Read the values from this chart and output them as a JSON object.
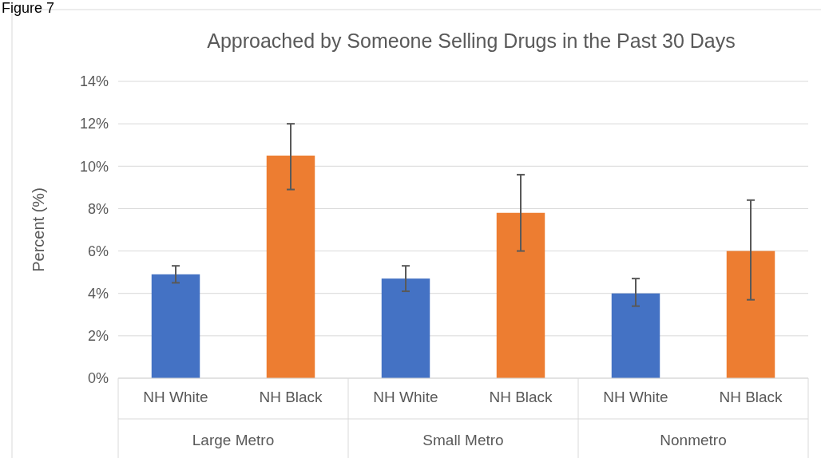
{
  "chart_data": {
    "type": "bar",
    "title": "Approached by Someone Selling Drugs in the Past 30 Days",
    "ylabel": "Percent (%)",
    "annotations": [
      "Figure 7"
    ],
    "categories": [
      "Large Metro",
      "Small Metro",
      "Nonmetro"
    ],
    "series": [
      {
        "name": "NH White",
        "color": "#4472c4",
        "values": [
          4.9,
          4.7,
          4.0
        ],
        "errors": [
          [
            4.5,
            5.3
          ],
          [
            4.1,
            5.3
          ],
          [
            3.4,
            4.7
          ]
        ]
      },
      {
        "name": "NH Black",
        "color": "#ed7d31",
        "values": [
          10.5,
          7.8,
          6.0
        ],
        "errors": [
          [
            8.9,
            12.0
          ],
          [
            6.0,
            9.6
          ],
          [
            3.7,
            8.4
          ]
        ]
      }
    ],
    "ylim": [
      0,
      14
    ],
    "yticks": [
      {
        "value": 0,
        "label": "0%"
      },
      {
        "value": 2,
        "label": "2%"
      },
      {
        "value": 4,
        "label": "4%"
      },
      {
        "value": 6,
        "label": "6%"
      },
      {
        "value": 8,
        "label": "8%"
      },
      {
        "value": 10,
        "label": "10%"
      },
      {
        "value": 12,
        "label": "12%"
      },
      {
        "value": 14,
        "label": "14%"
      }
    ],
    "grid": "y",
    "legend": false
  }
}
